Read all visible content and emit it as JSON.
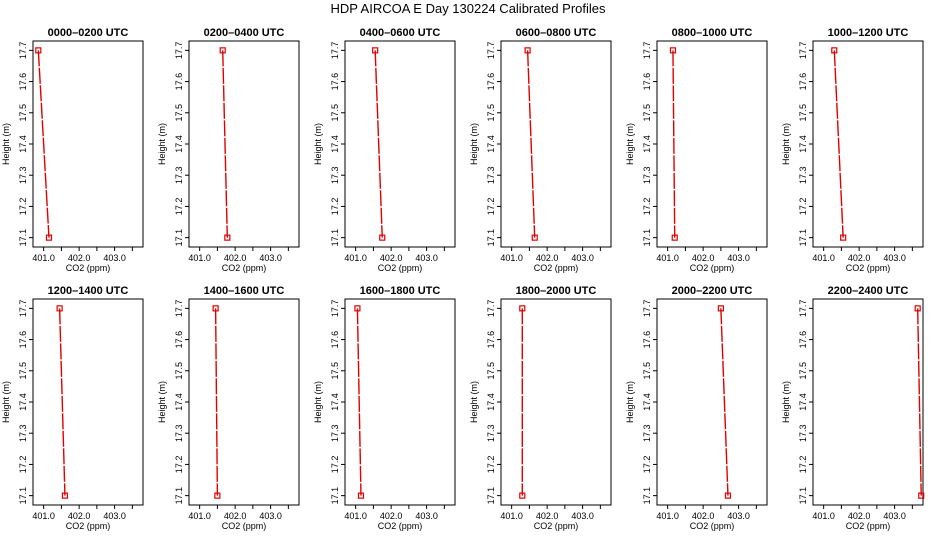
{
  "title": "HDP AIRCOA E  Day 130224  Calibrated Profiles",
  "colors": {
    "profile": "#e00000",
    "axes": "#000000"
  },
  "chart_data": [
    {
      "type": "line",
      "title": "0000–0200 UTC",
      "xlabel": "CO2 (ppm)",
      "ylabel": "Height (m)",
      "xlim": [
        400.7,
        403.8
      ],
      "ylim": [
        17.07,
        17.73
      ],
      "xticks": [
        "401.0",
        "402.0",
        "403.0"
      ],
      "yticks": [
        "17.1",
        "17.2",
        "17.3",
        "17.4",
        "17.5",
        "17.6",
        "17.7"
      ],
      "series": [
        {
          "x": [
            400.85,
            401.15
          ],
          "y": [
            17.7,
            17.1
          ]
        }
      ]
    },
    {
      "type": "line",
      "title": "0200–0400 UTC",
      "xlabel": "CO2 (ppm)",
      "ylabel": "Height (m)",
      "xlim": [
        400.7,
        403.8
      ],
      "ylim": [
        17.07,
        17.73
      ],
      "xticks": [
        "401.0",
        "402.0",
        "403.0"
      ],
      "yticks": [
        "17.1",
        "17.2",
        "17.3",
        "17.4",
        "17.5",
        "17.6",
        "17.7"
      ],
      "series": [
        {
          "x": [
            401.65,
            401.78
          ],
          "y": [
            17.7,
            17.1
          ]
        }
      ]
    },
    {
      "type": "line",
      "title": "0400–0600 UTC",
      "xlabel": "CO2 (ppm)",
      "ylabel": "Height (m)",
      "xlim": [
        400.7,
        403.8
      ],
      "ylim": [
        17.07,
        17.73
      ],
      "xticks": [
        "401.0",
        "402.0",
        "403.0"
      ],
      "yticks": [
        "17.1",
        "17.2",
        "17.3",
        "17.4",
        "17.5",
        "17.6",
        "17.7"
      ],
      "series": [
        {
          "x": [
            401.55,
            401.75
          ],
          "y": [
            17.7,
            17.1
          ]
        }
      ]
    },
    {
      "type": "line",
      "title": "0600–0800 UTC",
      "xlabel": "CO2 (ppm)",
      "ylabel": "Height (m)",
      "xlim": [
        400.7,
        403.8
      ],
      "ylim": [
        17.07,
        17.73
      ],
      "xticks": [
        "401.0",
        "402.0",
        "403.0"
      ],
      "yticks": [
        "17.1",
        "17.2",
        "17.3",
        "17.4",
        "17.5",
        "17.6",
        "17.7"
      ],
      "series": [
        {
          "x": [
            401.45,
            401.65
          ],
          "y": [
            17.7,
            17.1
          ]
        }
      ]
    },
    {
      "type": "line",
      "title": "0800–1000 UTC",
      "xlabel": "CO2 (ppm)",
      "ylabel": "Height (m)",
      "xlim": [
        400.7,
        403.8
      ],
      "ylim": [
        17.07,
        17.73
      ],
      "xticks": [
        "401.0",
        "402.0",
        "403.0"
      ],
      "yticks": [
        "17.1",
        "17.2",
        "17.3",
        "17.4",
        "17.5",
        "17.6",
        "17.7"
      ],
      "series": [
        {
          "x": [
            401.15,
            401.2
          ],
          "y": [
            17.7,
            17.1
          ]
        }
      ]
    },
    {
      "type": "line",
      "title": "1000–1200 UTC",
      "xlabel": "CO2 (ppm)",
      "ylabel": "Height (m)",
      "xlim": [
        400.7,
        403.8
      ],
      "ylim": [
        17.07,
        17.73
      ],
      "xticks": [
        "401.0",
        "402.0",
        "403.0"
      ],
      "yticks": [
        "17.1",
        "17.2",
        "17.3",
        "17.4",
        "17.5",
        "17.6",
        "17.7"
      ],
      "series": [
        {
          "x": [
            401.3,
            401.55
          ],
          "y": [
            17.7,
            17.1
          ]
        }
      ]
    },
    {
      "type": "line",
      "title": "1200–1400 UTC",
      "xlabel": "CO2 (ppm)",
      "ylabel": "Height (m)",
      "xlim": [
        400.7,
        403.8
      ],
      "ylim": [
        17.07,
        17.73
      ],
      "xticks": [
        "401.0",
        "402.0",
        "403.0"
      ],
      "yticks": [
        "17.1",
        "17.2",
        "17.3",
        "17.4",
        "17.5",
        "17.6",
        "17.7"
      ],
      "series": [
        {
          "x": [
            401.45,
            401.6
          ],
          "y": [
            17.7,
            17.1
          ]
        }
      ]
    },
    {
      "type": "line",
      "title": "1400–1600 UTC",
      "xlabel": "CO2 (ppm)",
      "ylabel": "Height (m)",
      "xlim": [
        400.7,
        403.8
      ],
      "ylim": [
        17.07,
        17.73
      ],
      "xticks": [
        "401.0",
        "402.0",
        "403.0"
      ],
      "yticks": [
        "17.1",
        "17.2",
        "17.3",
        "17.4",
        "17.5",
        "17.6",
        "17.7"
      ],
      "series": [
        {
          "x": [
            401.45,
            401.5
          ],
          "y": [
            17.7,
            17.1
          ]
        }
      ]
    },
    {
      "type": "line",
      "title": "1600–1800 UTC",
      "xlabel": "CO2 (ppm)",
      "ylabel": "Height (m)",
      "xlim": [
        400.7,
        403.8
      ],
      "ylim": [
        17.07,
        17.73
      ],
      "xticks": [
        "401.0",
        "402.0",
        "403.0"
      ],
      "yticks": [
        "17.1",
        "17.2",
        "17.3",
        "17.4",
        "17.5",
        "17.6",
        "17.7"
      ],
      "series": [
        {
          "x": [
            401.05,
            401.15
          ],
          "y": [
            17.7,
            17.1
          ]
        }
      ]
    },
    {
      "type": "line",
      "title": "1800–2000 UTC",
      "xlabel": "CO2 (ppm)",
      "ylabel": "Height (m)",
      "xlim": [
        400.7,
        403.8
      ],
      "ylim": [
        17.07,
        17.73
      ],
      "xticks": [
        "401.0",
        "402.0",
        "403.0"
      ],
      "yticks": [
        "17.1",
        "17.2",
        "17.3",
        "17.4",
        "17.5",
        "17.6",
        "17.7"
      ],
      "series": [
        {
          "x": [
            401.3,
            401.3
          ],
          "y": [
            17.7,
            17.1
          ]
        }
      ]
    },
    {
      "type": "line",
      "title": "2000–2200 UTC",
      "xlabel": "CO2 (ppm)",
      "ylabel": "Height (m)",
      "xlim": [
        400.7,
        403.8
      ],
      "ylim": [
        17.07,
        17.73
      ],
      "xticks": [
        "401.0",
        "402.0",
        "403.0"
      ],
      "yticks": [
        "17.1",
        "17.2",
        "17.3",
        "17.4",
        "17.5",
        "17.6",
        "17.7"
      ],
      "series": [
        {
          "x": [
            402.5,
            402.7
          ],
          "y": [
            17.7,
            17.1
          ]
        }
      ]
    },
    {
      "type": "line",
      "title": "2200–2400 UTC",
      "xlabel": "CO2 (ppm)",
      "ylabel": "Height (m)",
      "xlim": [
        400.7,
        403.8
      ],
      "ylim": [
        17.07,
        17.73
      ],
      "xticks": [
        "401.0",
        "402.0",
        "403.0"
      ],
      "yticks": [
        "17.1",
        "17.2",
        "17.3",
        "17.4",
        "17.5",
        "17.6",
        "17.7"
      ],
      "series": [
        {
          "x": [
            403.65,
            403.75
          ],
          "y": [
            17.7,
            17.1
          ]
        }
      ]
    }
  ]
}
